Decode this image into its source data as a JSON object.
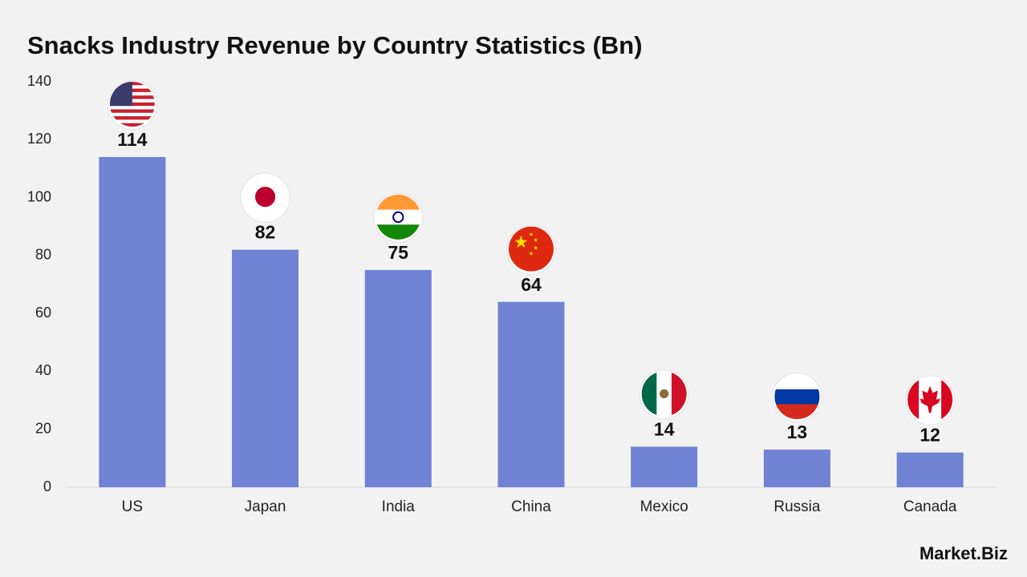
{
  "chart_data": {
    "type": "bar",
    "title": "Snacks Industry Revenue by Country Statistics (Bn)",
    "categories": [
      "US",
      "Japan",
      "India",
      "China",
      "Mexico",
      "Russia",
      "Canada"
    ],
    "values": [
      114,
      82,
      75,
      64,
      14,
      13,
      12
    ],
    "color": "#6f82d4",
    "ylim": [
      0,
      140
    ],
    "yticks": [
      0,
      20,
      40,
      60,
      80,
      100,
      120,
      140
    ],
    "grid": false,
    "logo": "Market.Biz"
  }
}
